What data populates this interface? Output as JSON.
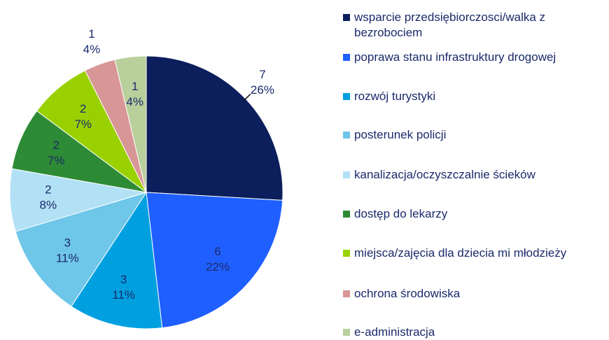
{
  "chart_data": {
    "type": "pie",
    "categories": [
      "wsparcie przedsiębiorczosci/walka z bezrobociem",
      "poprawa stanu infrastruktury drogowej",
      "rozwój turystyki",
      "posterunek policji",
      "kanalizacja/oczyszczalnie ścieków",
      "dostęp do lekarzy",
      "miejsca/zajęcia dla dziecia mi młodzieży",
      "ochrona środowiska",
      "e-administracja"
    ],
    "values": [
      7,
      6,
      3,
      3,
      2,
      2,
      2,
      1,
      1
    ],
    "percentages": [
      26,
      22,
      11,
      11,
      8,
      7,
      7,
      4,
      4
    ],
    "percentage_labels": [
      "26%",
      "22%",
      "11%",
      "11%",
      "8%",
      "7%",
      "7%",
      "4%",
      "4%"
    ],
    "colors": [
      "#0c1f5c",
      "#1f5fff",
      "#00a0e0",
      "#6ec6e8",
      "#b2e1f5",
      "#2e8b35",
      "#99d100",
      "#d99696",
      "#b9cf9c"
    ],
    "legend": "right"
  }
}
